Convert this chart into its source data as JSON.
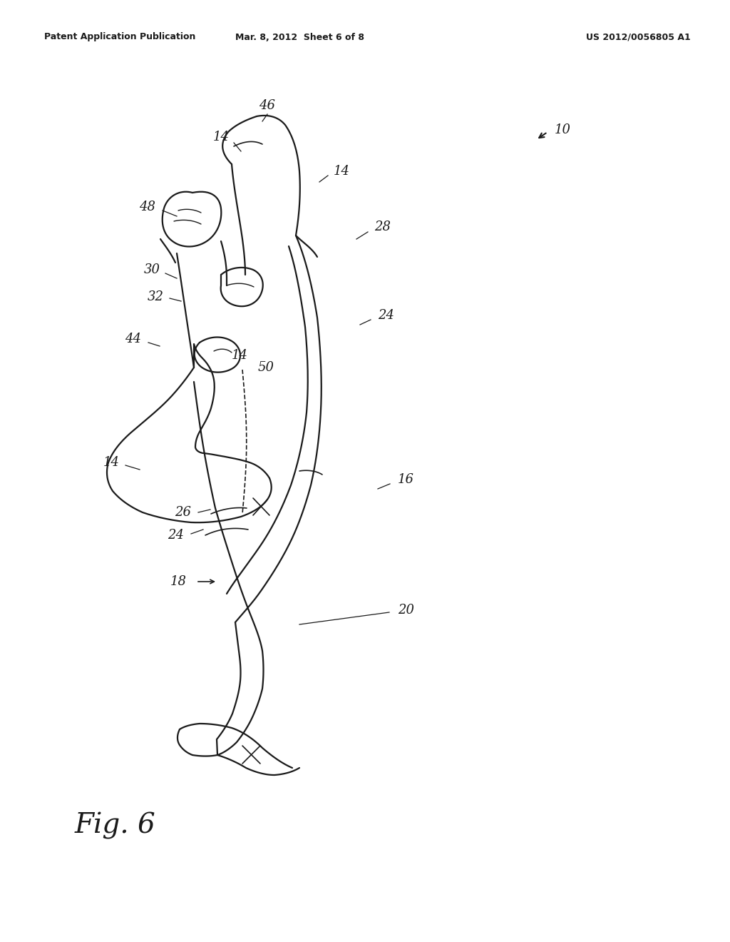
{
  "bg_color": "#ffffff",
  "line_color": "#1a1a1a",
  "header_left": "Patent Application Publication",
  "header_center": "Mar. 8, 2012  Sheet 6 of 8",
  "header_right": "US 2012/0056805 A1",
  "fig_label": "Fig. 6",
  "lw": 1.6,
  "label_fontsize": 13
}
